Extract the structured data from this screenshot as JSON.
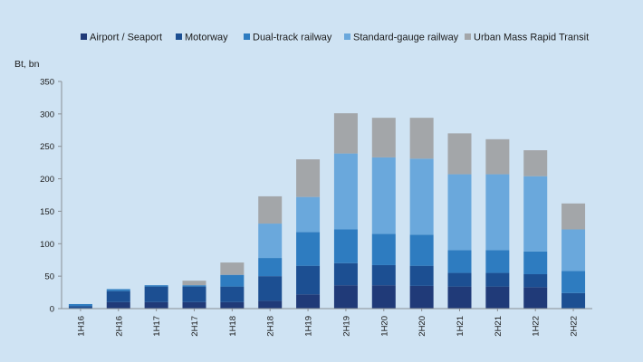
{
  "chart_data": {
    "type": "bar",
    "stacked": true,
    "title": "",
    "xlabel": "",
    "ylabel": "Bt, bn",
    "ylim": [
      0,
      350
    ],
    "yticks": [
      0,
      50,
      100,
      150,
      200,
      250,
      300,
      350
    ],
    "grid": false,
    "legend_position": "top",
    "categories": [
      "1H16",
      "2H16",
      "1H17",
      "2H17",
      "1H18",
      "2H18",
      "1H19",
      "2H19",
      "1H20",
      "2H20",
      "1H21",
      "2H21",
      "1H22",
      "2H22"
    ],
    "series": [
      {
        "name": "Airport / Seaport",
        "color": "#203a78",
        "values": [
          0,
          10,
          10,
          10,
          10,
          12,
          22,
          36,
          36,
          35,
          34,
          34,
          33,
          0
        ]
      },
      {
        "name": "Motorway",
        "color": "#1c4f92",
        "values": [
          4,
          17,
          24,
          24,
          24,
          38,
          44,
          34,
          31,
          31,
          21,
          21,
          20,
          24
        ]
      },
      {
        "name": "Dual-track railway",
        "color": "#2e7cc0",
        "values": [
          3,
          3,
          2,
          2,
          18,
          28,
          52,
          52,
          48,
          48,
          35,
          35,
          35,
          34
        ]
      },
      {
        "name": "Standard-gauge railway",
        "color": "#6aa8dc",
        "values": [
          0,
          0,
          0,
          0,
          0,
          53,
          54,
          117,
          118,
          117,
          117,
          117,
          116,
          64
        ]
      },
      {
        "name": "Urban Mass Rapid Transit",
        "color": "#a3a6a9",
        "values": [
          0,
          0,
          0,
          7,
          19,
          42,
          58,
          62,
          61,
          63,
          63,
          54,
          40,
          40
        ]
      }
    ]
  }
}
